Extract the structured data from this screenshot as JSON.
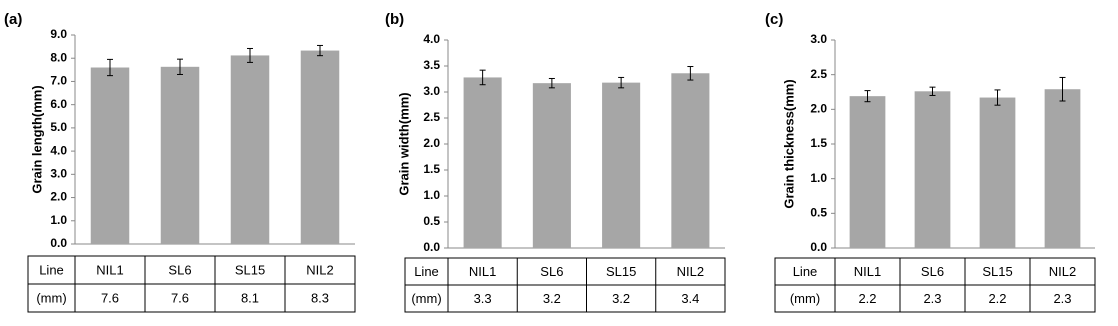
{
  "chart_data": [
    {
      "type": "bar",
      "panel": "(a)",
      "y_label": "Grain length(mm)",
      "categories": [
        "NIL1",
        "SL6",
        "SL15",
        "NIL2"
      ],
      "values": [
        7.6,
        7.63,
        8.12,
        8.33
      ],
      "errors": [
        0.35,
        0.33,
        0.3,
        0.22
      ],
      "value_labels": [
        "7.6",
        "7.6",
        "8.1",
        "8.3"
      ],
      "color": "#a6a6a6",
      "ylim": [
        0,
        9
      ],
      "yticks": [
        {
          "value": 0,
          "label": "0.0"
        },
        {
          "value": 1,
          "label": "1.0"
        },
        {
          "value": 2,
          "label": "2.0"
        },
        {
          "value": 3,
          "label": "3.0"
        },
        {
          "value": 4,
          "label": "4.0"
        },
        {
          "value": 5,
          "label": "5.0"
        },
        {
          "value": 6,
          "label": "6.0"
        },
        {
          "value": 7,
          "label": "7.0"
        },
        {
          "value": 8,
          "label": "8.0"
        },
        {
          "value": 9,
          "label": "9.0"
        }
      ],
      "table_header": "Line",
      "table_unit": "(mm)"
    },
    {
      "type": "bar",
      "panel": "(b)",
      "y_label": "Grain width(mm)",
      "categories": [
        "NIL1",
        "SL6",
        "SL15",
        "NIL2"
      ],
      "values": [
        3.28,
        3.17,
        3.18,
        3.36
      ],
      "errors": [
        0.14,
        0.09,
        0.1,
        0.13
      ],
      "value_labels": [
        "3.3",
        "3.2",
        "3.2",
        "3.4"
      ],
      "color": "#a6a6a6",
      "ylim": [
        0,
        4
      ],
      "yticks": [
        {
          "value": 0,
          "label": "0.0"
        },
        0.5,
        {
          "value": 1,
          "label": "1.0"
        },
        1.5,
        {
          "value": 2,
          "label": "2.0"
        },
        2.5,
        {
          "value": 3,
          "label": "3.0"
        },
        3.5,
        {
          "value": 4,
          "label": "4.0"
        }
      ],
      "table_header": "Line",
      "table_unit": "(mm)"
    },
    {
      "type": "bar",
      "panel": "(c)",
      "y_label": "Grain thickness(mm)",
      "categories": [
        "NIL1",
        "SL6",
        "SL15",
        "NIL2"
      ],
      "values": [
        2.19,
        2.26,
        2.17,
        2.29
      ],
      "errors": [
        0.08,
        0.06,
        0.11,
        0.17
      ],
      "value_labels": [
        "2.2",
        "2.3",
        "2.2",
        "2.3"
      ],
      "color": "#a6a6a6",
      "ylim": [
        0,
        3
      ],
      "yticks": [
        {
          "value": 0,
          "label": "0.0"
        },
        0.5,
        {
          "value": 1,
          "label": "1.0"
        },
        1.5,
        {
          "value": 2,
          "label": "2.0"
        },
        2.5,
        {
          "value": 3,
          "label": "3.0"
        }
      ],
      "table_header": "Line",
      "table_unit": "(mm)"
    }
  ]
}
